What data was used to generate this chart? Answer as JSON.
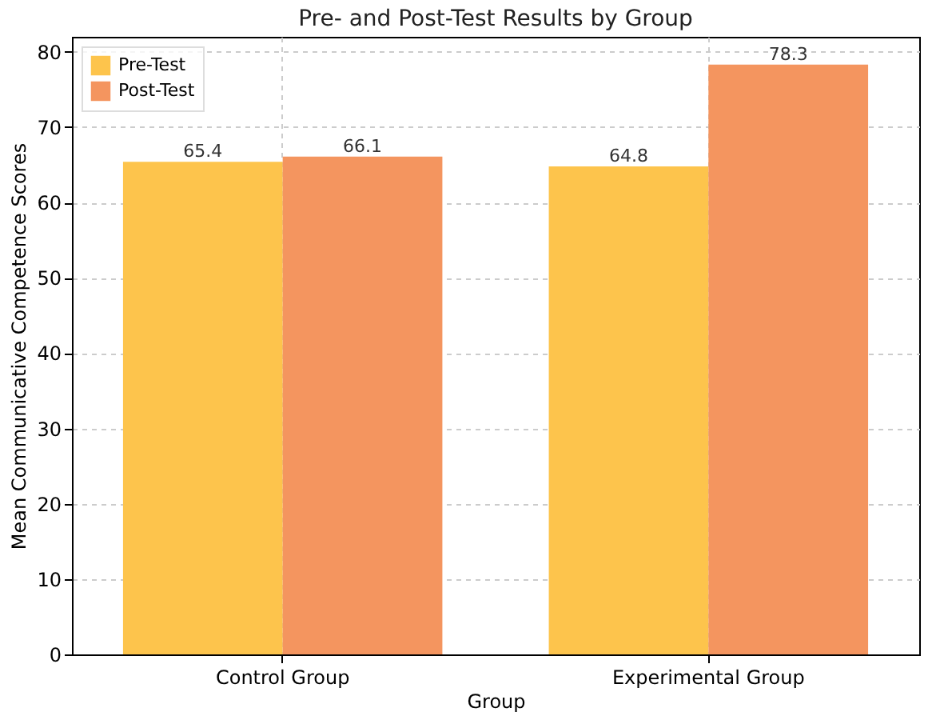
{
  "chart_data": {
    "type": "bar",
    "title": "Pre- and Post-Test Results by Group",
    "xlabel": "Group",
    "ylabel": "Mean Communicative Competence Scores",
    "categories": [
      "Control Group",
      "Experimental Group"
    ],
    "series": [
      {
        "name": "Pre-Test",
        "color": "#fdc44c",
        "values": [
          65.4,
          64.8
        ]
      },
      {
        "name": "Post-Test",
        "color": "#f4955f",
        "values": [
          66.1,
          78.3
        ]
      }
    ],
    "ylim": [
      0,
      82
    ],
    "yticks": [
      0,
      10,
      20,
      30,
      40,
      50,
      60,
      70,
      80
    ],
    "grid": true,
    "legend": "top left",
    "data_labels": true
  }
}
